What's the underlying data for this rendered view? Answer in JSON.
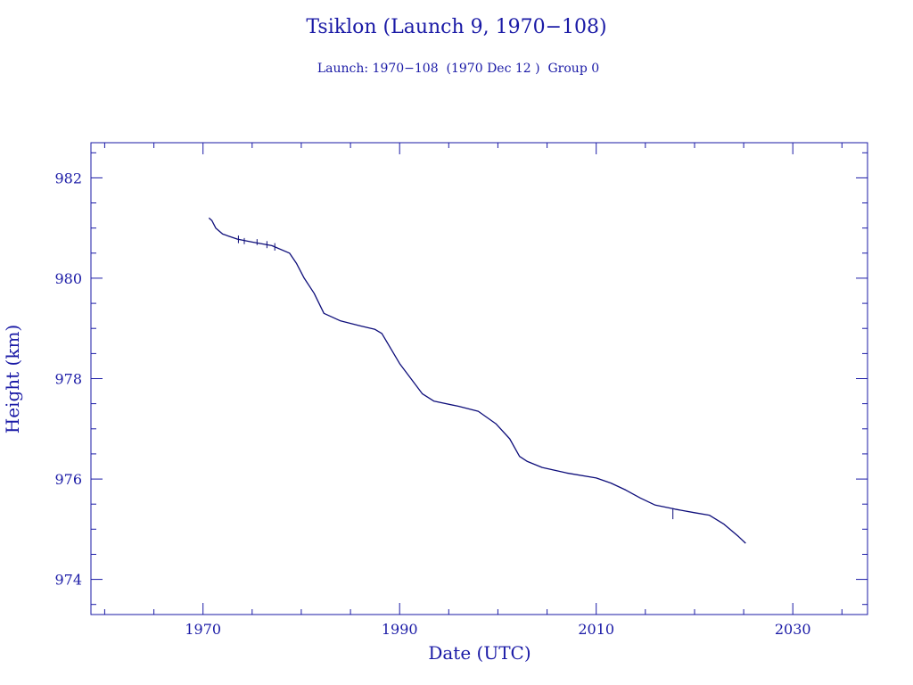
{
  "colors": {
    "ink": "#1a1aa6",
    "series": "#0d0d7a",
    "background": "#ffffff"
  },
  "chart_data": {
    "type": "line",
    "title": "Tsiklon (Launch 9, 1970−108)",
    "subtitle": "Launch: 1970−108  (1970 Dec 12 )  Group 0",
    "xlabel": "Date (UTC)",
    "ylabel": "Height (km)",
    "xlim": [
      1958.6,
      2037.6
    ],
    "ylim": [
      973.3,
      982.7
    ],
    "x_ticks": [
      1970,
      1990,
      2010,
      2030
    ],
    "x_tick_labels": [
      "1970",
      "1990",
      "2010",
      "2030"
    ],
    "y_ticks": [
      974,
      976,
      978,
      980,
      982
    ],
    "y_tick_labels": [
      "974",
      "976",
      "978",
      "980",
      "982"
    ],
    "x_minor_step": 5,
    "y_minor_step": 0.5,
    "grid": false,
    "series": [
      {
        "x": [
          1970.6,
          1970.9,
          1971.3,
          1972.0,
          1973.5,
          1975.0,
          1977.0,
          1978.8,
          1979.5,
          1980.3,
          1981.3,
          1982.3,
          1984.0,
          1986.0,
          1987.5,
          1988.2,
          1990.0,
          1992.3,
          1993.5,
          1996.0,
          1998.0,
          1999.8,
          2001.2,
          2002.2,
          2003.0,
          2004.5,
          2007.0,
          2010.0,
          2011.5,
          2013.0,
          2014.5,
          2016.0,
          2018.0,
          2020.0,
          2021.5,
          2023.0,
          2024.5,
          2025.2
        ],
        "y": [
          981.2,
          981.15,
          981.0,
          980.88,
          980.78,
          980.72,
          980.65,
          980.5,
          980.3,
          980.0,
          979.7,
          979.3,
          979.15,
          979.05,
          978.98,
          978.9,
          978.3,
          977.7,
          977.55,
          977.45,
          977.35,
          977.1,
          976.8,
          976.45,
          976.35,
          976.23,
          976.12,
          976.02,
          975.92,
          975.78,
          975.62,
          975.48,
          975.4,
          975.33,
          975.28,
          975.1,
          974.85,
          974.72
        ]
      }
    ],
    "noise_spikes": [
      {
        "x": 1973.6,
        "y_low": 980.7,
        "y_high": 980.85
      },
      {
        "x": 1974.2,
        "y_low": 980.68,
        "y_high": 980.8
      },
      {
        "x": 1975.5,
        "y_low": 980.66,
        "y_high": 980.78
      },
      {
        "x": 1976.5,
        "y_low": 980.6,
        "y_high": 980.74
      },
      {
        "x": 1977.3,
        "y_low": 980.55,
        "y_high": 980.7
      },
      {
        "x": 2017.8,
        "y_low": 975.2,
        "y_high": 975.42
      }
    ]
  }
}
